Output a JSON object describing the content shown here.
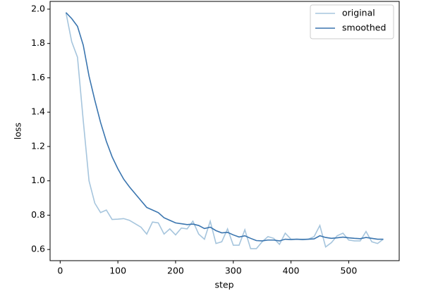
{
  "chart_data": {
    "type": "line",
    "x_label": "step",
    "y_label": "loss",
    "x": [
      10,
      20,
      30,
      40,
      50,
      60,
      70,
      80,
      90,
      100,
      110,
      120,
      130,
      140,
      150,
      160,
      170,
      180,
      190,
      200,
      210,
      220,
      230,
      240,
      250,
      260,
      270,
      280,
      290,
      300,
      310,
      320,
      330,
      340,
      350,
      360,
      370,
      380,
      390,
      400,
      410,
      420,
      430,
      440,
      450,
      460,
      470,
      480,
      490,
      500,
      510,
      520,
      530,
      540,
      550,
      560
    ],
    "series": [
      {
        "name": "original",
        "color": "#a6c5dd",
        "values": [
          1.98,
          1.81,
          1.72,
          1.35,
          1.0,
          0.87,
          0.815,
          0.83,
          0.775,
          0.777,
          0.78,
          0.77,
          0.75,
          0.73,
          0.69,
          0.76,
          0.755,
          0.69,
          0.72,
          0.685,
          0.725,
          0.72,
          0.765,
          0.69,
          0.66,
          0.765,
          0.635,
          0.645,
          0.72,
          0.625,
          0.625,
          0.715,
          0.605,
          0.605,
          0.645,
          0.675,
          0.665,
          0.63,
          0.695,
          0.66,
          0.66,
          0.66,
          0.66,
          0.675,
          0.74,
          0.615,
          0.64,
          0.68,
          0.695,
          0.655,
          0.65,
          0.65,
          0.705,
          0.645,
          0.635,
          0.66
        ]
      },
      {
        "name": "smoothed",
        "color": "#3a75af",
        "values": [
          1.98,
          1.945,
          1.9,
          1.79,
          1.61,
          1.47,
          1.34,
          1.23,
          1.14,
          1.07,
          1.01,
          0.965,
          0.925,
          0.885,
          0.845,
          0.83,
          0.815,
          0.785,
          0.77,
          0.755,
          0.75,
          0.745,
          0.748,
          0.74,
          0.722,
          0.73,
          0.71,
          0.697,
          0.7,
          0.685,
          0.673,
          0.68,
          0.665,
          0.652,
          0.65,
          0.655,
          0.655,
          0.65,
          0.66,
          0.658,
          0.66,
          0.658,
          0.66,
          0.662,
          0.68,
          0.67,
          0.665,
          0.668,
          0.672,
          0.668,
          0.665,
          0.663,
          0.67,
          0.665,
          0.66,
          0.66
        ]
      }
    ],
    "xlim": [
      -17.5,
      587.5
    ],
    "ylim": [
      0.535,
      2.045
    ],
    "xticks": [
      0,
      100,
      200,
      300,
      400,
      500
    ],
    "yticks": [
      0.6,
      0.8,
      {
        "value": 1.0,
        "label": "1.0"
      },
      1.2,
      1.4,
      1.6,
      1.8,
      {
        "value": 2.0,
        "label": "2.0"
      }
    ],
    "legend": "upper right"
  }
}
